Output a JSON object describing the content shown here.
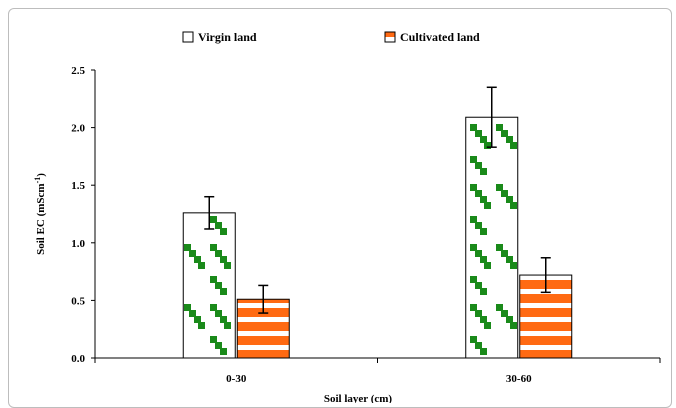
{
  "chart_data": {
    "type": "bar",
    "categories": [
      "0-30",
      "30-60"
    ],
    "series": [
      {
        "name": "Virgin land",
        "values": [
          1.26,
          2.09
        ],
        "errors": [
          0.14,
          0.26
        ],
        "color": "#1a8a1a"
      },
      {
        "name": "Cultivated land",
        "values": [
          0.51,
          0.72
        ],
        "errors": [
          0.12,
          0.15
        ],
        "color": "#ff6a13"
      }
    ],
    "title": "",
    "xlabel": "Soil layer (cm)",
    "ylabel": "Soil EC (mScm",
    "ylabel_sup": "-1",
    "ylabel_close": ")",
    "ylim": [
      0,
      2.5
    ],
    "yticks": [
      "0.0",
      "0.5",
      "1.0",
      "1.5",
      "2.0",
      "2.5"
    ],
    "legend_position": "top"
  }
}
